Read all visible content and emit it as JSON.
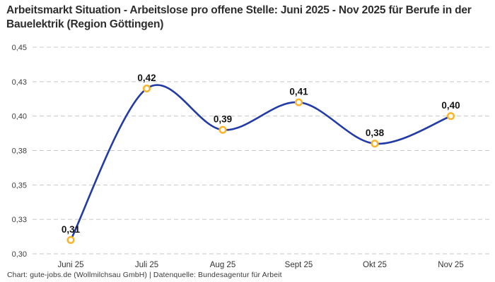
{
  "header": {
    "title": "Arbeitsmarkt Situation - Arbeitslose pro offene Stelle: Juni 2025 - Nov 2025 für Berufe in der Bauelektrik (Region Göttingen)"
  },
  "footer": {
    "credit": "Chart: gute-jobs.de (Wollmilchsau GmbH) | Datenquelle: Bundesagentur für Arbeit"
  },
  "chart_data": {
    "type": "line",
    "title": "Arbeitsmarkt Situation - Arbeitslose pro offene Stelle: Juni 2025 - Nov 2025 für Berufe in der Bauelektrik (Region Göttingen)",
    "categories": [
      "Juni 25",
      "Juli 25",
      "Aug 25",
      "Sept 25",
      "Okt 25",
      "Nov 25"
    ],
    "values": [
      0.31,
      0.42,
      0.39,
      0.41,
      0.38,
      0.4
    ],
    "point_labels": [
      "0,31",
      "0,42",
      "0,39",
      "0,41",
      "0,38",
      "0,40"
    ],
    "ylim": [
      0.3,
      0.45
    ],
    "y_ticks": [
      {
        "value": 0.3,
        "label": "0,30"
      },
      {
        "value": 0.325,
        "label": "0,33"
      },
      {
        "value": 0.35,
        "label": "0,35"
      },
      {
        "value": 0.375,
        "label": "0,38"
      },
      {
        "value": 0.4,
        "label": "0,40"
      },
      {
        "value": 0.425,
        "label": "0,43"
      },
      {
        "value": 0.45,
        "label": "0,45"
      }
    ],
    "xlabel": "",
    "ylabel": "",
    "legend": "none",
    "grid": {
      "horizontal": true,
      "style": "dashed"
    },
    "colors": {
      "line": "#233ba6",
      "marker_ring": "#f9b42a",
      "marker_fill": "#ffffff",
      "grid": "#c8c8c8",
      "point_label": "#141414",
      "tick_label": "#3c3c3c"
    }
  }
}
